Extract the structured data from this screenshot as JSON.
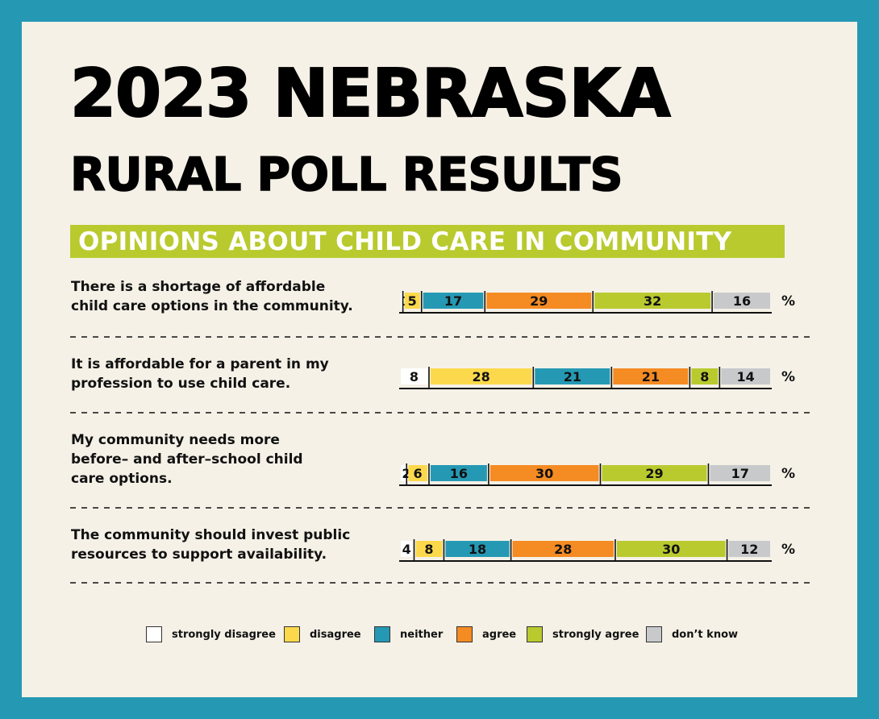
{
  "header": {
    "title_line1": "2023 NEBRASKA",
    "title_line2": "RURAL POLL RESULTS",
    "subtitle": "OPINIONS ABOUT CHILD CARE IN COMMUNITY"
  },
  "colors": {
    "frame": "#2599b4",
    "background": "#f5f1e7",
    "banner": "#b9ca2f",
    "strongly_disagree": "#ffffff",
    "disagree": "#fcd94c",
    "neither": "#2599b4",
    "agree": "#f58b23",
    "strongly_agree": "#b9ca2f",
    "dont_know": "#c8c9cb"
  },
  "legend": [
    {
      "label": "strongly disagree",
      "color": "#ffffff"
    },
    {
      "label": "disagree",
      "color": "#fcd94c"
    },
    {
      "label": "neither",
      "color": "#2599b4"
    },
    {
      "label": "agree",
      "color": "#f58b23"
    },
    {
      "label": "strongly agree",
      "color": "#b9ca2f"
    },
    {
      "label": "don’t know",
      "color": "#c8c9cb"
    }
  ],
  "chart_data": {
    "type": "bar",
    "stacked": true,
    "orientation": "horizontal",
    "unit": "%",
    "title": "OPINIONS ABOUT CHILD CARE IN COMMUNITY",
    "categories": [
      "There is a shortage of affordable\nchild care options in the community.",
      "It is affordable for a parent in my\nprofession to use child care.",
      "My community needs more\nbefore– and after–school child\ncare options.",
      "The community should invest public\nresources to support availability."
    ],
    "series": [
      {
        "name": "strongly disagree",
        "values": [
          1,
          8,
          2,
          4
        ]
      },
      {
        "name": "disagree",
        "values": [
          5,
          28,
          6,
          8
        ]
      },
      {
        "name": "neither",
        "values": [
          17,
          21,
          16,
          18
        ]
      },
      {
        "name": "agree",
        "values": [
          29,
          21,
          30,
          28
        ]
      },
      {
        "name": "strongly agree",
        "values": [
          32,
          8,
          29,
          30
        ]
      },
      {
        "name": "don’t know",
        "values": [
          16,
          14,
          17,
          12
        ]
      }
    ]
  }
}
